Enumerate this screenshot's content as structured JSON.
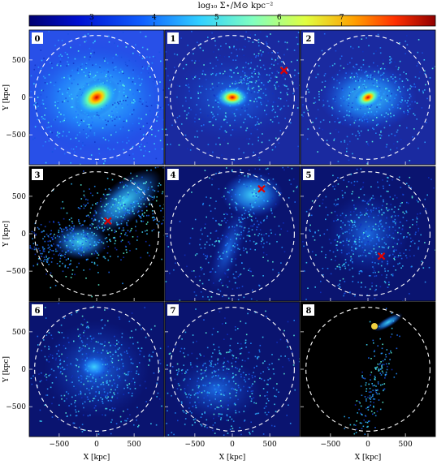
{
  "colorbar": {
    "label": "log₁₀ Σ⋆/M⊙ kpc⁻²",
    "min": 2,
    "max": 8.5,
    "ticks": [
      "3",
      "4",
      "5",
      "6",
      "7"
    ],
    "tick_values": [
      3,
      4,
      5,
      6,
      7
    ]
  },
  "axes": {
    "ylabel": "Y [kpc]",
    "xlabel": "X [kpc]",
    "yticks": [
      "500",
      "0",
      "−500"
    ],
    "ytick_values": [
      500,
      0,
      -500
    ],
    "xticks": [
      "−500",
      "0",
      "500"
    ],
    "xtick_values": [
      -500,
      0,
      500
    ],
    "range": [
      -900,
      900
    ]
  },
  "panels": [
    {
      "id": "0",
      "marker": null,
      "bg": "#2540d8"
    },
    {
      "id": "1",
      "marker": [
        690,
        360
      ],
      "bg": "#1a2aa0"
    },
    {
      "id": "2",
      "marker": null,
      "bg": "#1a2aa0"
    },
    {
      "id": "3",
      "marker": [
        150,
        170
      ],
      "bg": "#000000"
    },
    {
      "id": "4",
      "marker": [
        390,
        600
      ],
      "bg": "#0a1470"
    },
    {
      "id": "5",
      "marker": [
        180,
        -300
      ],
      "bg": "#0a1470"
    },
    {
      "id": "6",
      "marker": null,
      "bg": "#0a1470"
    },
    {
      "id": "7",
      "marker": null,
      "bg": "#0a1470"
    },
    {
      "id": "8",
      "marker": null,
      "bg": "#000000"
    }
  ]
}
